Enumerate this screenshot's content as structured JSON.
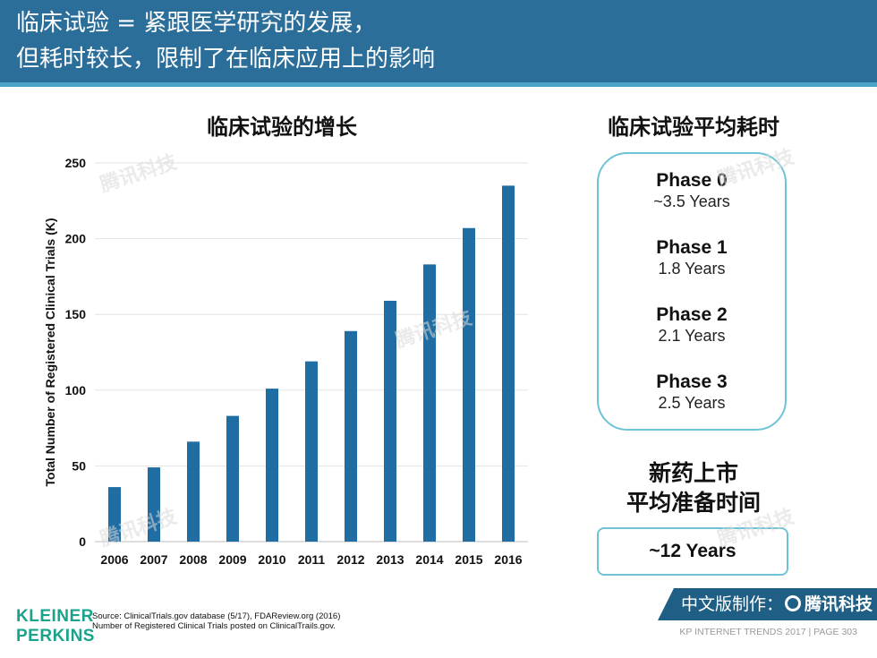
{
  "header": {
    "line1": "临床试验 = 紧跟医学研究的发展，",
    "line2": "但耗时较长，限制了在临床应用上的影响"
  },
  "left_title": "临床试验的增长",
  "chart_data": {
    "type": "bar",
    "title": "临床试验的增长",
    "ylabel": "Total Number of Registered Clinical Trials (K)",
    "xlabel": "",
    "categories": [
      "2006",
      "2007",
      "2008",
      "2009",
      "2010",
      "2011",
      "2012",
      "2013",
      "2014",
      "2015",
      "2016"
    ],
    "values": [
      36,
      49,
      66,
      83,
      101,
      119,
      139,
      159,
      183,
      207,
      235
    ],
    "ylim": [
      0,
      250
    ],
    "yticks": [
      0,
      50,
      100,
      150,
      200,
      250
    ],
    "bar_color": "#1f6da3",
    "grid": true
  },
  "right_title": "临床试验平均耗时",
  "phases": [
    {
      "name": "Phase 0",
      "duration": "~3.5 Years"
    },
    {
      "name": "Phase 1",
      "duration": "1.8 Years"
    },
    {
      "name": "Phase 2",
      "duration": "2.1 Years"
    },
    {
      "name": "Phase 3",
      "duration": "2.5 Years"
    }
  ],
  "market": {
    "title_line1": "新药上市",
    "title_line2": "平均准备时间",
    "value": "~12 Years"
  },
  "footer": {
    "logo_line1": "KLEINER",
    "logo_line2": "PERKINS",
    "source_line1": "Source: ClinicalTrials.gov database (5/17), FDAReview.org (2016)",
    "source_line2": "Number of Registered Clinical Trials posted on ClinicalTrails.gov.",
    "badge_prefix": "中文版制作：",
    "badge_brand": "腾讯科技",
    "page_info": "KP INTERNET TRENDS 2017  |  PAGE 303"
  },
  "watermark_text": "腾讯科技",
  "colors": {
    "header_bg": "#2b6e9a",
    "accent_line": "#4aa3c9",
    "box_border": "#6ec3d6",
    "logo_green": "#1aa38a",
    "badge_bg": "#1f5f85"
  }
}
